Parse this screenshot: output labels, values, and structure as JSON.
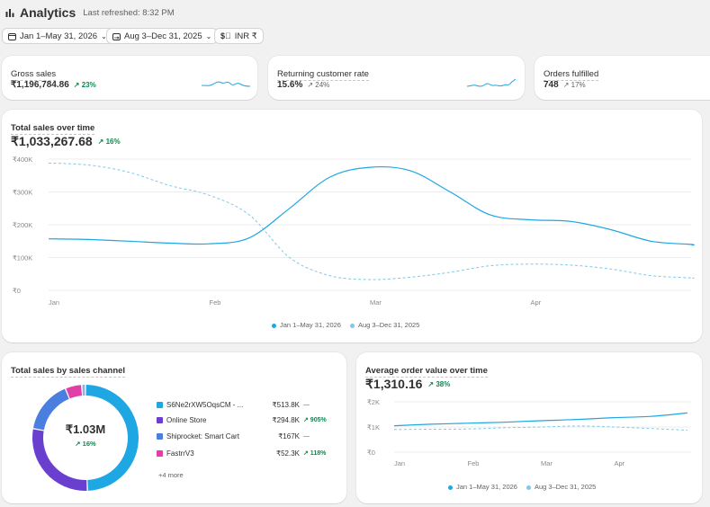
{
  "header": {
    "title": "Analytics",
    "refreshed": "Last refreshed: 8:32 PM"
  },
  "filters": {
    "range": "Jan 1–May 31, 2026",
    "compare": "Aug 3–Dec 31, 2025",
    "currency": "INR ₹"
  },
  "metrics": [
    {
      "title": "Gross sales",
      "value": "₹1,196,784.86",
      "change": "↗ 23%"
    },
    {
      "title": "Returning customer rate",
      "value": "15.6%",
      "change": "↗ 24%"
    },
    {
      "title": "Orders fulfilled",
      "value": "748",
      "change": "↗ 17%"
    }
  ],
  "total_sales": {
    "title": "Total sales over time",
    "value": "₹1,033,267.68",
    "change": "↗ 16%",
    "legend_current": "Jan 1–May 31, 2026",
    "legend_compare": "Aug 3–Dec 31, 2025"
  },
  "by_channel": {
    "title": "Total sales by sales channel",
    "center_value": "₹1.03M",
    "center_change": "↗ 16%",
    "more": "+4 more",
    "rows": [
      {
        "name": "S6Ne2rXW5OqsCM - ...",
        "amount": "₹513.8K",
        "change": "—",
        "color": "#1ea7e3"
      },
      {
        "name": "Online Store",
        "amount": "₹294.8K",
        "change": "↗ 905%",
        "color": "#6a3fd0"
      },
      {
        "name": "Shiprocket: Smart Cart",
        "amount": "₹167K",
        "change": "—",
        "color": "#4a7fe0"
      },
      {
        "name": "FastrrV3",
        "amount": "₹52.3K",
        "change": "↗ 118%",
        "color": "#e13ea8"
      }
    ]
  },
  "aov": {
    "title": "Average order value over time",
    "value": "₹1,310.16",
    "change": "↗ 38%",
    "legend_current": "Jan 1–May 31, 2026",
    "legend_compare": "Aug 3–Dec 31, 2025"
  },
  "chart_data": [
    {
      "type": "line",
      "title": "Total sales over time",
      "categories": [
        "Jan",
        "Feb",
        "Mar",
        "Apr"
      ],
      "y_ticks": [
        "₹0",
        "₹100K",
        "₹200K",
        "₹300K",
        "₹400K"
      ],
      "ylim": [
        0,
        400000
      ],
      "x": [
        0,
        0.25,
        0.5,
        0.75,
        1.0,
        1.25,
        1.5,
        1.75,
        2.0,
        2.25,
        2.5,
        2.75,
        3.0,
        3.25,
        3.5,
        3.75,
        4.0,
        4.2
      ],
      "series": [
        {
          "name": "Jan 1–May 31, 2026",
          "color": "#1ea7e3",
          "dashed": false,
          "values": [
            157000,
            155000,
            150000,
            144000,
            142000,
            160000,
            250000,
            345000,
            375000,
            365000,
            300000,
            230000,
            215000,
            210000,
            185000,
            150000,
            140000,
            138000
          ]
        },
        {
          "name": "Aug 3–Dec 31, 2025",
          "color": "#7fc8ea",
          "dashed": true,
          "values": [
            388000,
            382000,
            360000,
            320000,
            290000,
            230000,
            100000,
            45000,
            33000,
            40000,
            55000,
            75000,
            80000,
            77000,
            65000,
            45000,
            38000,
            38000
          ]
        }
      ],
      "grid": true
    },
    {
      "type": "pie",
      "title": "Total sales by sales channel",
      "labels": [
        "S6Ne2rXW5OqsCM - ...",
        "Online Store",
        "Shiprocket: Smart Cart",
        "FastrrV3",
        "+4 more"
      ],
      "values": [
        513.8,
        294.8,
        167,
        52.3,
        12
      ],
      "colors": [
        "#1ea7e3",
        "#6a3fd0",
        "#4a7fe0",
        "#e13ea8",
        "#8fb3d9"
      ]
    },
    {
      "type": "line",
      "title": "Average order value over time",
      "categories": [
        "Jan",
        "Feb",
        "Mar",
        "Apr"
      ],
      "y_ticks": [
        "₹0",
        "₹1K",
        "₹2K"
      ],
      "ylim": [
        0,
        2000
      ],
      "x": [
        0,
        0.5,
        1.0,
        1.5,
        2.0,
        2.5,
        3.0,
        3.5,
        4.0
      ],
      "series": [
        {
          "name": "Jan 1–May 31, 2026",
          "color": "#1ea7e3",
          "dashed": false,
          "values": [
            1050,
            1110,
            1150,
            1190,
            1250,
            1300,
            1370,
            1420,
            1560
          ]
        },
        {
          "name": "Aug 3–Dec 31, 2025",
          "color": "#7fc8ea",
          "dashed": true,
          "values": [
            900,
            910,
            920,
            970,
            1000,
            1040,
            1000,
            940,
            870
          ]
        }
      ],
      "grid": true
    }
  ]
}
